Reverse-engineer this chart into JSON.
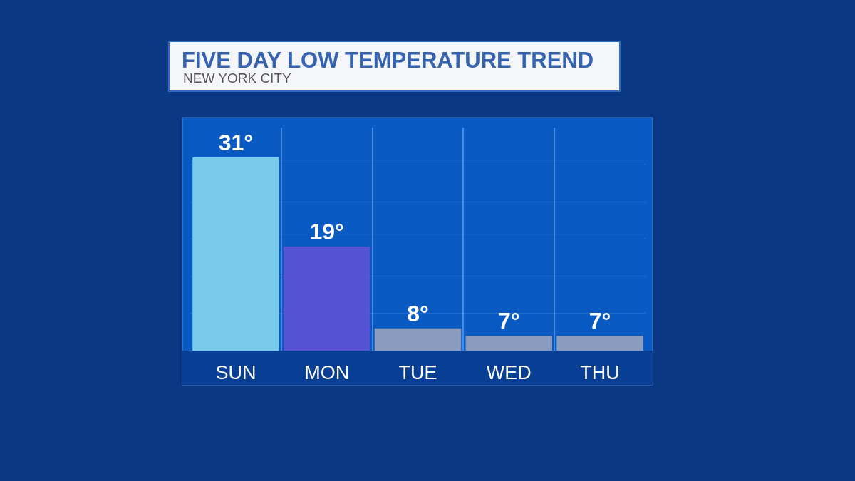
{
  "chart_data": {
    "type": "bar",
    "title": "FIVE DAY LOW TEMPERATURE TREND",
    "subtitle": "NEW YORK CITY",
    "categories": [
      "SUN",
      "MON",
      "TUE",
      "WED",
      "THU"
    ],
    "values": [
      31,
      19,
      8,
      7,
      7
    ],
    "colors": [
      "#78cbea",
      "#5653d4",
      "#8a9cc0",
      "#8a9cc0",
      "#8a9cc0"
    ],
    "value_labels": [
      "31°",
      "19°",
      "8°",
      "7°",
      "7°"
    ],
    "ylim": [
      5,
      35
    ],
    "yticks": [
      {
        "value": 10,
        "label": null
      },
      {
        "value": 15,
        "label": null
      },
      {
        "value": 20,
        "label": null
      },
      {
        "value": 25,
        "label": null
      },
      {
        "value": 30,
        "label": null
      }
    ],
    "grid": true,
    "tick_labels": "x"
  }
}
